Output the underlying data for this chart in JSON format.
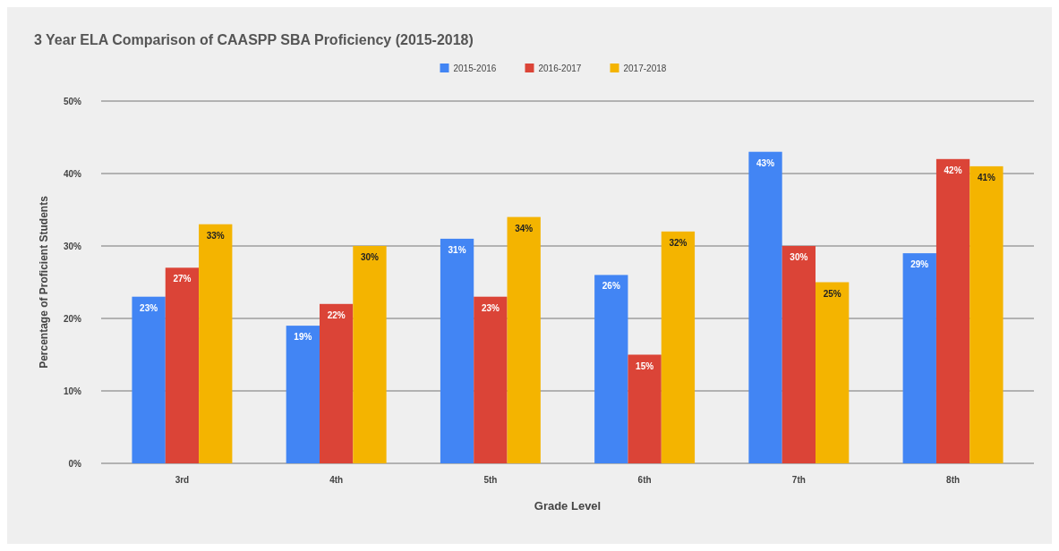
{
  "chart_data": {
    "type": "bar",
    "title": "3 Year ELA Comparison of CAASPP SBA Proficiency (2015-2018)",
    "xlabel": "Grade Level",
    "ylabel": "Percentage of Proficient Students",
    "categories": [
      "3rd",
      "4th",
      "5th",
      "6th",
      "7th",
      "8th"
    ],
    "series": [
      {
        "name": "2015-2016",
        "color": "#4285f4",
        "values": [
          23,
          19,
          31,
          26,
          43,
          29
        ],
        "value_labels": [
          "23%",
          "19%",
          "31%",
          "26%",
          "43%",
          "29%"
        ]
      },
      {
        "name": "2016-2017",
        "color": "#db4437",
        "values": [
          27,
          22,
          23,
          15,
          30,
          42
        ],
        "value_labels": [
          "27%",
          "22%",
          "23%",
          "15%",
          "30%",
          "42%"
        ]
      },
      {
        "name": "2017-2018",
        "color": "#f4b400",
        "values": [
          33,
          30,
          34,
          32,
          25,
          41
        ],
        "value_labels": [
          "33%",
          "30%",
          "34%",
          "32%",
          "25%",
          "41%"
        ]
      }
    ],
    "ylim": [
      0,
      50
    ],
    "yticks": [
      {
        "value": 0,
        "label": "0%"
      },
      {
        "value": 10,
        "label": "10%"
      },
      {
        "value": 20,
        "label": "20%"
      },
      {
        "value": 30,
        "label": "30%"
      },
      {
        "value": 40,
        "label": "40%"
      },
      {
        "value": 50,
        "label": "50%"
      }
    ],
    "grid": "y",
    "legend": "top"
  }
}
